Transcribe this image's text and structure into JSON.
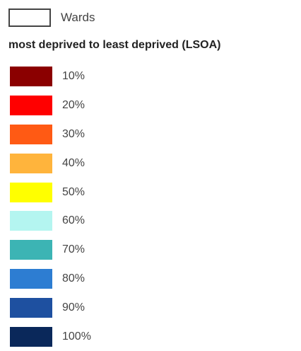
{
  "legend": {
    "wards_label": "Wards",
    "title": "most deprived to least deprived (LSOA)",
    "classes": [
      {
        "label": "10%",
        "color": "#8b0000"
      },
      {
        "label": "20%",
        "color": "#ff0000"
      },
      {
        "label": "30%",
        "color": "#ff5a14"
      },
      {
        "label": "40%",
        "color": "#ffb43c"
      },
      {
        "label": "50%",
        "color": "#ffff00"
      },
      {
        "label": "60%",
        "color": "#b4f5f0"
      },
      {
        "label": "70%",
        "color": "#3cb4b4"
      },
      {
        "label": "80%",
        "color": "#2d7dd2"
      },
      {
        "label": "90%",
        "color": "#1e50a0"
      },
      {
        "label": "100%",
        "color": "#0a285a"
      }
    ]
  }
}
